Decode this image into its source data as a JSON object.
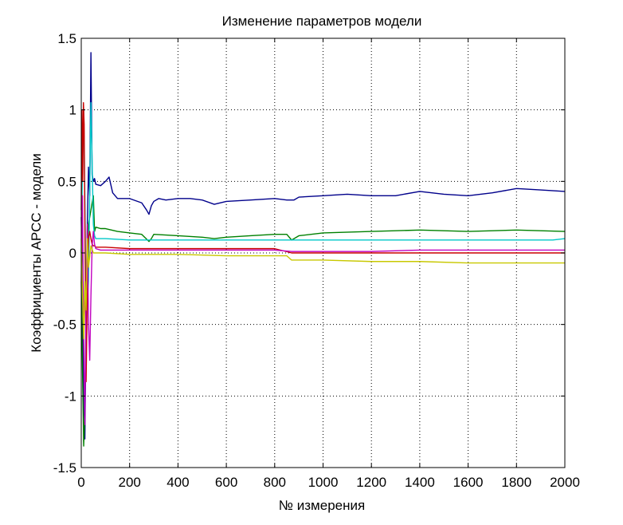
{
  "chart_data": {
    "type": "line",
    "title": "Изменение параметров модели",
    "xlabel": "№ измерения",
    "ylabel": "Коэффициенты АРСС - модели",
    "xlim": [
      0,
      2000
    ],
    "ylim": [
      -1.5,
      1.5
    ],
    "xticks": [
      0,
      200,
      400,
      600,
      800,
      1000,
      1200,
      1400,
      1600,
      1800,
      2000
    ],
    "xtick_labels": [
      "0",
      "200",
      "400",
      "600",
      "800",
      "1000",
      "1200",
      "1400",
      "1600",
      "1800",
      "2000"
    ],
    "yticks": [
      -1.5,
      -1,
      -0.5,
      0,
      0.5,
      1,
      1.5
    ],
    "ytick_labels": [
      "-1.5",
      "-1",
      "-0.5",
      "0",
      "0.5",
      "1",
      "1.5"
    ],
    "grid": true,
    "series": [
      {
        "name": "blue",
        "color": "#00008b",
        "x": [
          0,
          5,
          10,
          15,
          20,
          25,
          30,
          35,
          40,
          45,
          50,
          55,
          60,
          80,
          100,
          115,
          130,
          150,
          200,
          250,
          270,
          280,
          290,
          300,
          320,
          350,
          400,
          450,
          500,
          550,
          600,
          700,
          800,
          850,
          880,
          900,
          1000,
          1100,
          1200,
          1300,
          1400,
          1450,
          1500,
          1600,
          1700,
          1800,
          1900,
          2000
        ],
        "y": [
          0.25,
          -0.3,
          -1.0,
          -1.3,
          -0.5,
          0.2,
          0.6,
          0.4,
          1.4,
          0.55,
          0.5,
          0.52,
          0.48,
          0.47,
          0.5,
          0.53,
          0.42,
          0.38,
          0.38,
          0.35,
          0.3,
          0.27,
          0.33,
          0.36,
          0.38,
          0.37,
          0.38,
          0.38,
          0.37,
          0.34,
          0.36,
          0.37,
          0.38,
          0.37,
          0.37,
          0.39,
          0.4,
          0.41,
          0.4,
          0.4,
          0.43,
          0.42,
          0.41,
          0.4,
          0.42,
          0.45,
          0.44,
          0.43
        ]
      },
      {
        "name": "green",
        "color": "#008000",
        "x": [
          0,
          5,
          10,
          15,
          20,
          25,
          30,
          40,
          50,
          55,
          60,
          80,
          100,
          150,
          200,
          250,
          280,
          290,
          300,
          400,
          500,
          550,
          600,
          700,
          800,
          850,
          870,
          900,
          1000,
          1200,
          1400,
          1600,
          1800,
          2000
        ],
        "y": [
          -0.2,
          -0.8,
          -1.35,
          -1.1,
          -0.4,
          0.05,
          0.2,
          0.3,
          0.4,
          0.15,
          0.18,
          0.17,
          0.17,
          0.15,
          0.14,
          0.13,
          0.08,
          0.1,
          0.13,
          0.12,
          0.11,
          0.1,
          0.11,
          0.12,
          0.13,
          0.13,
          0.09,
          0.12,
          0.14,
          0.15,
          0.16,
          0.15,
          0.16,
          0.15
        ]
      },
      {
        "name": "cyan",
        "color": "#00c8c8",
        "x": [
          0,
          5,
          10,
          15,
          20,
          30,
          40,
          50,
          55,
          60,
          80,
          100,
          200,
          300,
          400,
          600,
          800,
          1000,
          1200,
          1400,
          1600,
          1800,
          1950,
          2000
        ],
        "y": [
          0.0,
          0.6,
          1.0,
          0.4,
          -0.5,
          -0.2,
          1.05,
          0.2,
          0.12,
          0.1,
          0.1,
          0.1,
          0.09,
          0.09,
          0.09,
          0.09,
          0.09,
          0.09,
          0.09,
          0.09,
          0.09,
          0.09,
          0.09,
          0.1
        ]
      },
      {
        "name": "red",
        "color": "#c80000",
        "x": [
          0,
          3,
          6,
          9,
          12,
          15,
          20,
          25,
          30,
          35,
          40,
          45,
          50,
          55,
          60,
          80,
          100,
          200,
          300,
          400,
          600,
          800,
          870,
          900,
          1000,
          1200,
          1400,
          1600,
          1800,
          2000
        ],
        "y": [
          0.3,
          1.0,
          0.5,
          1.05,
          0.9,
          0.2,
          -0.9,
          -0.3,
          0.1,
          0.15,
          0.1,
          0.06,
          0.05,
          0.05,
          0.04,
          0.04,
          0.04,
          0.03,
          0.03,
          0.03,
          0.03,
          0.03,
          0.0,
          0.0,
          0.0,
          0.0,
          0.0,
          0.0,
          0.0,
          0.0
        ]
      },
      {
        "name": "magenta",
        "color": "#c000c0",
        "x": [
          0,
          5,
          10,
          15,
          20,
          25,
          30,
          35,
          40,
          45,
          50,
          55,
          60,
          80,
          100,
          200,
          300,
          400,
          600,
          800,
          870,
          900,
          1000,
          1200,
          1400,
          1600,
          1800,
          2000
        ],
        "y": [
          -0.2,
          0.4,
          -0.6,
          -1.2,
          -0.3,
          0.2,
          -0.5,
          -0.75,
          -0.3,
          0.05,
          0.15,
          0.06,
          0.03,
          0.02,
          0.02,
          0.02,
          0.02,
          0.02,
          0.02,
          0.02,
          0.01,
          0.01,
          0.01,
          0.01,
          0.02,
          0.02,
          0.02,
          0.02
        ]
      },
      {
        "name": "yellow",
        "color": "#c8c800",
        "x": [
          0,
          5,
          10,
          15,
          20,
          25,
          30,
          40,
          50,
          55,
          60,
          80,
          100,
          200,
          300,
          400,
          600,
          800,
          850,
          870,
          900,
          1000,
          1200,
          1400,
          1600,
          1800,
          2000
        ],
        "y": [
          0.1,
          -0.3,
          -0.6,
          -0.2,
          -0.4,
          0.1,
          -0.1,
          0.05,
          0.0,
          0.0,
          0.0,
          0.0,
          0.0,
          -0.01,
          -0.01,
          -0.01,
          -0.02,
          -0.02,
          -0.02,
          -0.05,
          -0.05,
          -0.05,
          -0.06,
          -0.06,
          -0.07,
          -0.07,
          -0.07
        ]
      }
    ]
  }
}
